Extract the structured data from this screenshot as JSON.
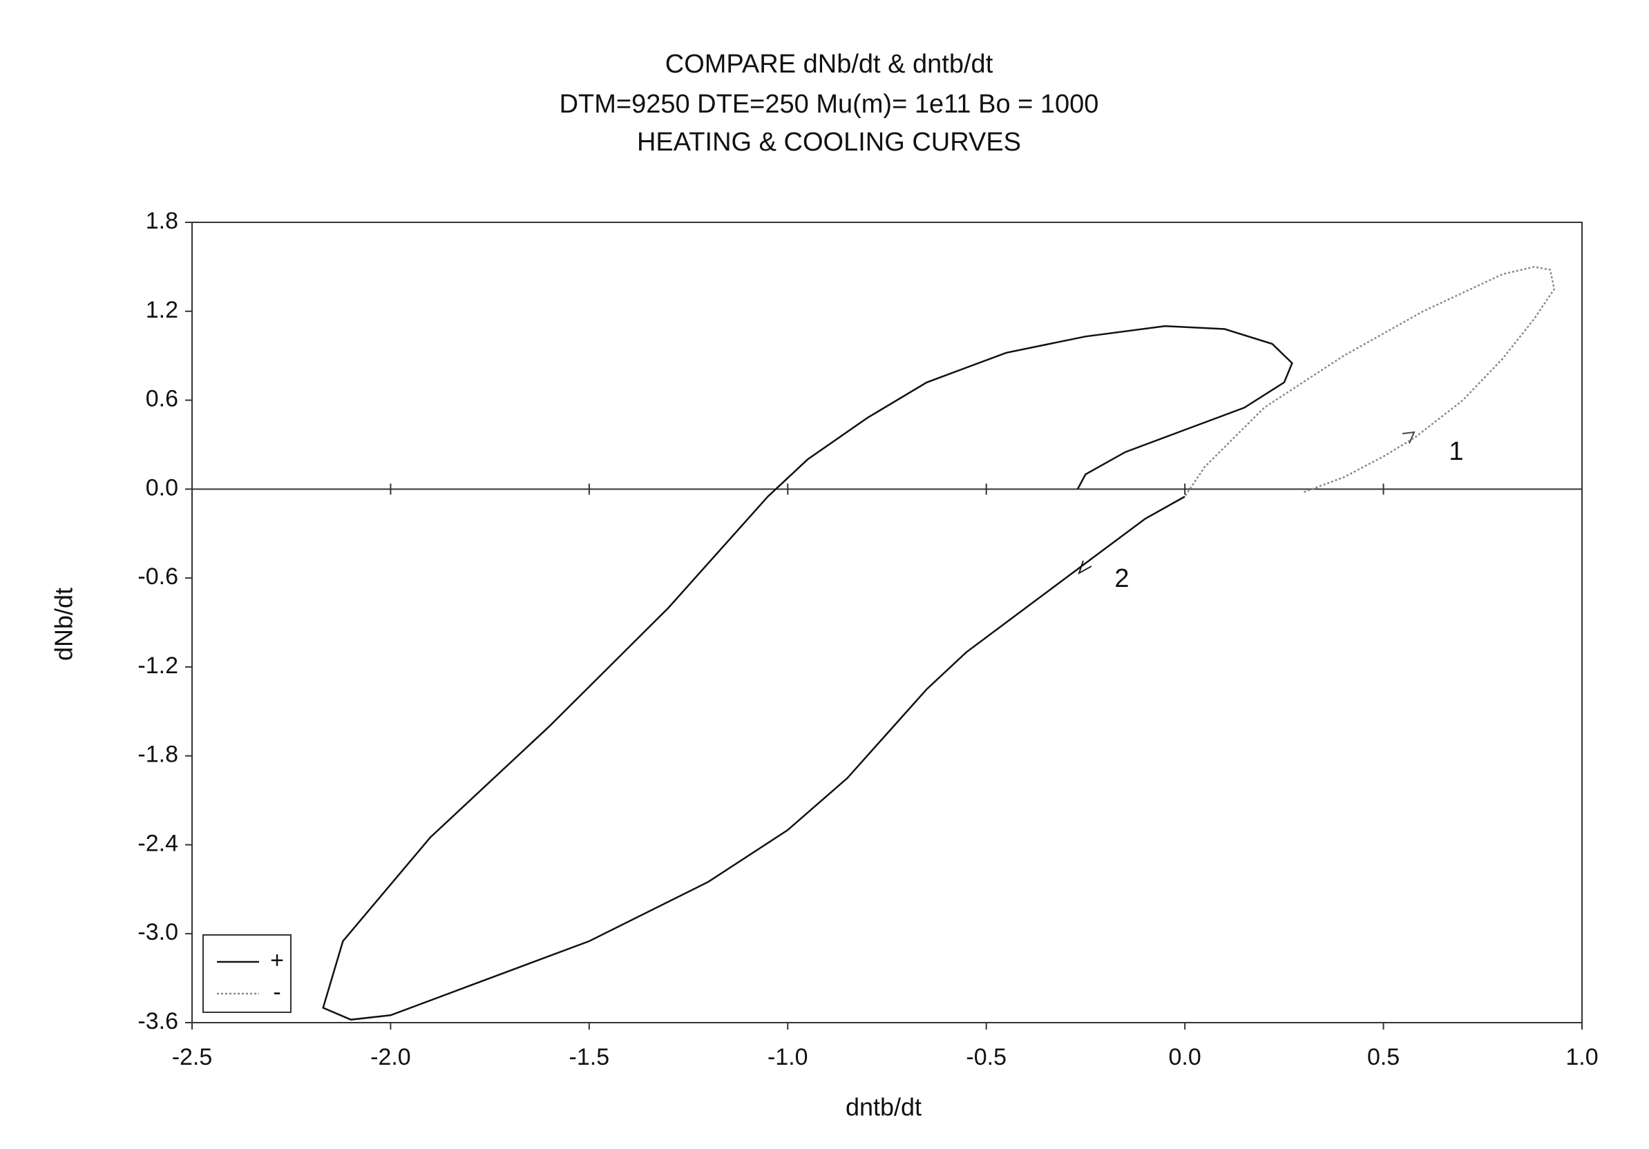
{
  "chart_data": {
    "type": "line",
    "title": "COMPARE dNb/dt & dntb/dt",
    "subtitle": "DTM=9250 DTE=250 Mu(m)= 1e11 Bo = 1000",
    "subtitle2": "HEATING & COOLING CURVES",
    "x_label": "dntb/dt",
    "y_label": "dNb/dt",
    "xlim": [
      -2.5,
      1.0
    ],
    "ylim": [
      -3.6,
      1.8
    ],
    "xticks": [
      -2.5,
      {
        "value": -2.0,
        "label": "-2.0"
      },
      -1.5,
      {
        "value": -1.0,
        "label": "-1.0"
      },
      -0.5,
      {
        "value": 0,
        "label": "0.0"
      },
      0.5,
      {
        "value": 1.0,
        "label": "1.0"
      }
    ],
    "yticks": [
      1.8,
      1.2,
      0.6,
      {
        "value": 0,
        "label": "0.0"
      },
      -0.6,
      -1.2,
      -1.8,
      -2.4,
      {
        "value": -3.0,
        "label": "-3.0"
      },
      -3.6
    ],
    "zero_line": true,
    "legend": "lower left",
    "annotations": [
      "1",
      "2"
    ],
    "series": [
      {
        "name": "+",
        "color": "#111111",
        "dash": "solid",
        "x": [
          0,
          -0.1,
          -0.25,
          -0.4,
          -0.55,
          -0.65,
          -0.75,
          -0.85,
          -1.0,
          -1.2,
          -1.5,
          -1.8,
          -2.0,
          -2.1,
          -2.17,
          -2.12,
          -1.9,
          -1.6,
          -1.3,
          -1.05,
          -0.95,
          -0.8,
          -0.65,
          -0.45,
          -0.25,
          -0.05,
          0.1,
          0.22,
          0.27,
          0.25,
          0.15,
          0,
          -0.15,
          -0.25,
          -0.27
        ],
        "values": [
          -0.05,
          -0.2,
          -0.5,
          -0.8,
          -1.1,
          -1.35,
          -1.65,
          -1.95,
          -2.3,
          -2.65,
          -3.05,
          -3.35,
          -3.55,
          -3.58,
          -3.5,
          -3.05,
          -2.35,
          -1.6,
          -0.8,
          -0.05,
          0.2,
          0.48,
          0.72,
          0.92,
          1.03,
          1.1,
          1.08,
          0.98,
          0.85,
          0.72,
          0.55,
          0.4,
          0.25,
          0.1,
          0
        ]
      },
      {
        "name": "-",
        "color": "#888888",
        "dash": "dotted",
        "x": [
          0.3,
          0.4,
          0.5,
          0.58,
          0.7,
          0.8,
          0.88,
          0.93,
          0.92,
          0.88,
          0.8,
          0.6,
          0.4,
          0.2,
          0.05,
          0
        ],
        "values": [
          -0.02,
          0.08,
          0.22,
          0.35,
          0.6,
          0.88,
          1.15,
          1.35,
          1.48,
          1.5,
          1.45,
          1.2,
          0.9,
          0.55,
          0.15,
          -0.05
        ]
      }
    ]
  }
}
